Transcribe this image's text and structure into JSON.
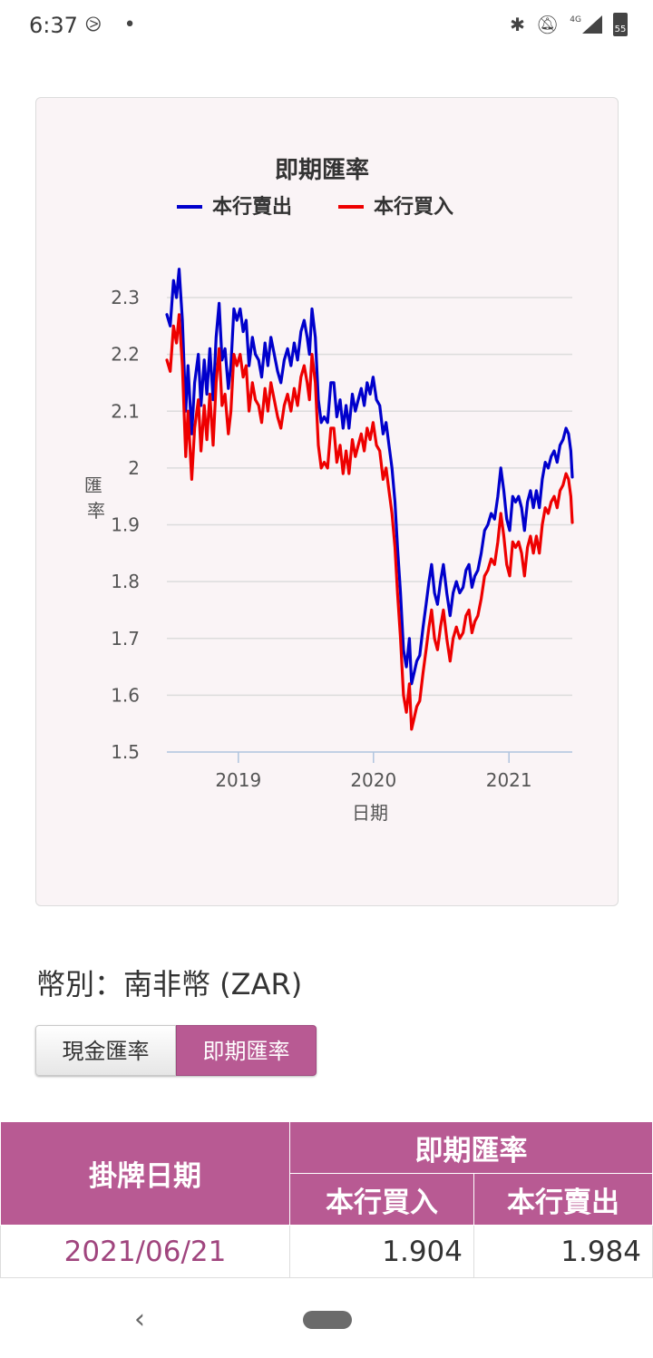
{
  "status_bar": {
    "time": "6:37",
    "left_icons": [
      "notification-swirl-icon",
      "dot-icon"
    ],
    "network_label": "4G",
    "battery_level": "55",
    "right_icons": [
      "bluetooth-icon",
      "mute-icon",
      "signal-icon",
      "battery-icon"
    ]
  },
  "chart_data": {
    "type": "line",
    "title": "即期匯率",
    "xlabel": "日期",
    "ylabel": "匯率",
    "ylim": [
      1.5,
      2.3
    ],
    "yticks": [
      "1.5",
      "1.6",
      "1.7",
      "1.8",
      "1.9",
      "2",
      "2.1",
      "2.2",
      "2.3"
    ],
    "xticks": [
      "2019",
      "2020",
      "2021"
    ],
    "xlim": [
      "2018-06-22",
      "2021-06-21"
    ],
    "grid": true,
    "legend_position": "top",
    "series": [
      {
        "name": "本行賣出",
        "color": "#0000cc",
        "points": [
          [
            "2018-06-22",
            2.27
          ],
          [
            "2018-07-01",
            2.25
          ],
          [
            "2018-07-10",
            2.33
          ],
          [
            "2018-07-18",
            2.3
          ],
          [
            "2018-07-25",
            2.35
          ],
          [
            "2018-08-03",
            2.26
          ],
          [
            "2018-08-12",
            2.1
          ],
          [
            "2018-08-18",
            2.18
          ],
          [
            "2018-08-28",
            2.06
          ],
          [
            "2018-09-05",
            2.15
          ],
          [
            "2018-09-15",
            2.2
          ],
          [
            "2018-09-22",
            2.11
          ],
          [
            "2018-10-01",
            2.19
          ],
          [
            "2018-10-08",
            2.13
          ],
          [
            "2018-10-16",
            2.21
          ],
          [
            "2018-10-25",
            2.12
          ],
          [
            "2018-11-02",
            2.23
          ],
          [
            "2018-11-10",
            2.29
          ],
          [
            "2018-11-18",
            2.19
          ],
          [
            "2018-11-26",
            2.21
          ],
          [
            "2018-12-05",
            2.14
          ],
          [
            "2018-12-12",
            2.18
          ],
          [
            "2018-12-20",
            2.28
          ],
          [
            "2018-12-28",
            2.26
          ],
          [
            "2019-01-06",
            2.28
          ],
          [
            "2019-01-14",
            2.24
          ],
          [
            "2019-01-22",
            2.26
          ],
          [
            "2019-01-30",
            2.18
          ],
          [
            "2019-02-08",
            2.23
          ],
          [
            "2019-02-16",
            2.2
          ],
          [
            "2019-02-25",
            2.19
          ],
          [
            "2019-03-05",
            2.16
          ],
          [
            "2019-03-14",
            2.22
          ],
          [
            "2019-03-22",
            2.18
          ],
          [
            "2019-03-30",
            2.23
          ],
          [
            "2019-04-08",
            2.2
          ],
          [
            "2019-04-17",
            2.17
          ],
          [
            "2019-04-26",
            2.15
          ],
          [
            "2019-05-05",
            2.19
          ],
          [
            "2019-05-14",
            2.21
          ],
          [
            "2019-05-23",
            2.18
          ],
          [
            "2019-06-01",
            2.22
          ],
          [
            "2019-06-10",
            2.19
          ],
          [
            "2019-06-19",
            2.24
          ],
          [
            "2019-06-28",
            2.26
          ],
          [
            "2019-07-06",
            2.23
          ],
          [
            "2019-07-12",
            2.2
          ],
          [
            "2019-07-19",
            2.28
          ],
          [
            "2019-07-28",
            2.23
          ],
          [
            "2019-08-05",
            2.12
          ],
          [
            "2019-08-13",
            2.08
          ],
          [
            "2019-08-21",
            2.09
          ],
          [
            "2019-08-30",
            2.08
          ],
          [
            "2019-09-08",
            2.15
          ],
          [
            "2019-09-16",
            2.15
          ],
          [
            "2019-09-24",
            2.09
          ],
          [
            "2019-10-03",
            2.12
          ],
          [
            "2019-10-11",
            2.07
          ],
          [
            "2019-10-19",
            2.11
          ],
          [
            "2019-10-27",
            2.07
          ],
          [
            "2019-11-05",
            2.13
          ],
          [
            "2019-11-13",
            2.1
          ],
          [
            "2019-11-21",
            2.12
          ],
          [
            "2019-11-29",
            2.14
          ],
          [
            "2019-12-07",
            2.11
          ],
          [
            "2019-12-15",
            2.15
          ],
          [
            "2019-12-23",
            2.13
          ],
          [
            "2019-12-31",
            2.16
          ],
          [
            "2020-01-09",
            2.12
          ],
          [
            "2020-01-18",
            2.11
          ],
          [
            "2020-01-27",
            2.06
          ],
          [
            "2020-02-04",
            2.08
          ],
          [
            "2020-02-12",
            2.04
          ],
          [
            "2020-02-20",
            2.0
          ],
          [
            "2020-02-28",
            1.94
          ],
          [
            "2020-03-06",
            1.86
          ],
          [
            "2020-03-14",
            1.78
          ],
          [
            "2020-03-22",
            1.68
          ],
          [
            "2020-03-30",
            1.65
          ],
          [
            "2020-04-07",
            1.7
          ],
          [
            "2020-04-13",
            1.62
          ],
          [
            "2020-04-20",
            1.64
          ],
          [
            "2020-04-27",
            1.66
          ],
          [
            "2020-05-05",
            1.67
          ],
          [
            "2020-05-14",
            1.72
          ],
          [
            "2020-05-22",
            1.76
          ],
          [
            "2020-05-30",
            1.8
          ],
          [
            "2020-06-06",
            1.83
          ],
          [
            "2020-06-14",
            1.78
          ],
          [
            "2020-06-22",
            1.76
          ],
          [
            "2020-06-30",
            1.8
          ],
          [
            "2020-07-08",
            1.83
          ],
          [
            "2020-07-17",
            1.78
          ],
          [
            "2020-07-26",
            1.74
          ],
          [
            "2020-08-03",
            1.78
          ],
          [
            "2020-08-12",
            1.8
          ],
          [
            "2020-08-21",
            1.78
          ],
          [
            "2020-08-30",
            1.79
          ],
          [
            "2020-09-07",
            1.82
          ],
          [
            "2020-09-15",
            1.83
          ],
          [
            "2020-09-23",
            1.79
          ],
          [
            "2020-10-01",
            1.81
          ],
          [
            "2020-10-09",
            1.82
          ],
          [
            "2020-10-18",
            1.85
          ],
          [
            "2020-10-27",
            1.89
          ],
          [
            "2020-11-05",
            1.9
          ],
          [
            "2020-11-14",
            1.92
          ],
          [
            "2020-11-23",
            1.91
          ],
          [
            "2020-12-02",
            1.95
          ],
          [
            "2020-12-10",
            2.0
          ],
          [
            "2020-12-18",
            1.96
          ],
          [
            "2020-12-26",
            1.91
          ],
          [
            "2021-01-03",
            1.89
          ],
          [
            "2021-01-11",
            1.95
          ],
          [
            "2021-01-19",
            1.94
          ],
          [
            "2021-01-27",
            1.95
          ],
          [
            "2021-02-04",
            1.93
          ],
          [
            "2021-02-12",
            1.89
          ],
          [
            "2021-02-20",
            1.94
          ],
          [
            "2021-02-28",
            1.96
          ],
          [
            "2021-03-08",
            1.93
          ],
          [
            "2021-03-16",
            1.96
          ],
          [
            "2021-03-24",
            1.93
          ],
          [
            "2021-04-01",
            1.98
          ],
          [
            "2021-04-09",
            2.01
          ],
          [
            "2021-04-17",
            2.0
          ],
          [
            "2021-04-25",
            2.02
          ],
          [
            "2021-05-03",
            2.03
          ],
          [
            "2021-05-11",
            2.01
          ],
          [
            "2021-05-19",
            2.04
          ],
          [
            "2021-05-27",
            2.05
          ],
          [
            "2021-06-04",
            2.07
          ],
          [
            "2021-06-11",
            2.06
          ],
          [
            "2021-06-17",
            2.03
          ],
          [
            "2021-06-21",
            1.984
          ]
        ]
      },
      {
        "name": "本行買入",
        "color": "#ee0000",
        "points": [
          [
            "2018-06-22",
            2.19
          ],
          [
            "2018-07-01",
            2.17
          ],
          [
            "2018-07-10",
            2.25
          ],
          [
            "2018-07-18",
            2.22
          ],
          [
            "2018-07-25",
            2.27
          ],
          [
            "2018-08-03",
            2.18
          ],
          [
            "2018-08-12",
            2.02
          ],
          [
            "2018-08-18",
            2.1
          ],
          [
            "2018-08-28",
            1.98
          ],
          [
            "2018-09-05",
            2.07
          ],
          [
            "2018-09-15",
            2.12
          ],
          [
            "2018-09-22",
            2.03
          ],
          [
            "2018-10-01",
            2.11
          ],
          [
            "2018-10-08",
            2.05
          ],
          [
            "2018-10-16",
            2.13
          ],
          [
            "2018-10-25",
            2.04
          ],
          [
            "2018-11-02",
            2.15
          ],
          [
            "2018-11-10",
            2.21
          ],
          [
            "2018-11-18",
            2.11
          ],
          [
            "2018-11-26",
            2.13
          ],
          [
            "2018-12-05",
            2.06
          ],
          [
            "2018-12-12",
            2.1
          ],
          [
            "2018-12-20",
            2.2
          ],
          [
            "2018-12-28",
            2.18
          ],
          [
            "2019-01-06",
            2.2
          ],
          [
            "2019-01-14",
            2.16
          ],
          [
            "2019-01-22",
            2.18
          ],
          [
            "2019-01-30",
            2.1
          ],
          [
            "2019-02-08",
            2.15
          ],
          [
            "2019-02-16",
            2.12
          ],
          [
            "2019-02-25",
            2.11
          ],
          [
            "2019-03-05",
            2.08
          ],
          [
            "2019-03-14",
            2.14
          ],
          [
            "2019-03-22",
            2.1
          ],
          [
            "2019-03-30",
            2.15
          ],
          [
            "2019-04-08",
            2.12
          ],
          [
            "2019-04-17",
            2.09
          ],
          [
            "2019-04-26",
            2.07
          ],
          [
            "2019-05-05",
            2.11
          ],
          [
            "2019-05-14",
            2.13
          ],
          [
            "2019-05-23",
            2.1
          ],
          [
            "2019-06-01",
            2.14
          ],
          [
            "2019-06-10",
            2.11
          ],
          [
            "2019-06-19",
            2.16
          ],
          [
            "2019-06-28",
            2.18
          ],
          [
            "2019-07-06",
            2.15
          ],
          [
            "2019-07-12",
            2.12
          ],
          [
            "2019-07-19",
            2.2
          ],
          [
            "2019-07-28",
            2.15
          ],
          [
            "2019-08-05",
            2.04
          ],
          [
            "2019-08-13",
            2.0
          ],
          [
            "2019-08-21",
            2.01
          ],
          [
            "2019-08-30",
            2.0
          ],
          [
            "2019-09-08",
            2.07
          ],
          [
            "2019-09-16",
            2.07
          ],
          [
            "2019-09-24",
            2.01
          ],
          [
            "2019-10-03",
            2.04
          ],
          [
            "2019-10-11",
            1.99
          ],
          [
            "2019-10-19",
            2.03
          ],
          [
            "2019-10-27",
            1.99
          ],
          [
            "2019-11-05",
            2.05
          ],
          [
            "2019-11-13",
            2.02
          ],
          [
            "2019-11-21",
            2.04
          ],
          [
            "2019-11-29",
            2.06
          ],
          [
            "2019-12-07",
            2.03
          ],
          [
            "2019-12-15",
            2.07
          ],
          [
            "2019-12-23",
            2.05
          ],
          [
            "2019-12-31",
            2.08
          ],
          [
            "2020-01-09",
            2.04
          ],
          [
            "2020-01-18",
            2.03
          ],
          [
            "2020-01-27",
            1.98
          ],
          [
            "2020-02-04",
            2.0
          ],
          [
            "2020-02-12",
            1.96
          ],
          [
            "2020-02-20",
            1.92
          ],
          [
            "2020-02-28",
            1.86
          ],
          [
            "2020-03-06",
            1.78
          ],
          [
            "2020-03-14",
            1.7
          ],
          [
            "2020-03-22",
            1.6
          ],
          [
            "2020-03-30",
            1.57
          ],
          [
            "2020-04-07",
            1.62
          ],
          [
            "2020-04-13",
            1.54
          ],
          [
            "2020-04-20",
            1.56
          ],
          [
            "2020-04-27",
            1.58
          ],
          [
            "2020-05-05",
            1.59
          ],
          [
            "2020-05-14",
            1.64
          ],
          [
            "2020-05-22",
            1.68
          ],
          [
            "2020-05-30",
            1.72
          ],
          [
            "2020-06-06",
            1.75
          ],
          [
            "2020-06-14",
            1.7
          ],
          [
            "2020-06-22",
            1.68
          ],
          [
            "2020-06-30",
            1.72
          ],
          [
            "2020-07-08",
            1.75
          ],
          [
            "2020-07-17",
            1.7
          ],
          [
            "2020-07-26",
            1.66
          ],
          [
            "2020-08-03",
            1.7
          ],
          [
            "2020-08-12",
            1.72
          ],
          [
            "2020-08-21",
            1.7
          ],
          [
            "2020-08-30",
            1.71
          ],
          [
            "2020-09-07",
            1.74
          ],
          [
            "2020-09-15",
            1.75
          ],
          [
            "2020-09-23",
            1.71
          ],
          [
            "2020-10-01",
            1.73
          ],
          [
            "2020-10-09",
            1.74
          ],
          [
            "2020-10-18",
            1.77
          ],
          [
            "2020-10-27",
            1.81
          ],
          [
            "2020-11-05",
            1.82
          ],
          [
            "2020-11-14",
            1.84
          ],
          [
            "2020-11-23",
            1.83
          ],
          [
            "2020-12-02",
            1.87
          ],
          [
            "2020-12-10",
            1.92
          ],
          [
            "2020-12-18",
            1.88
          ],
          [
            "2020-12-26",
            1.83
          ],
          [
            "2021-01-03",
            1.81
          ],
          [
            "2021-01-11",
            1.87
          ],
          [
            "2021-01-19",
            1.86
          ],
          [
            "2021-01-27",
            1.87
          ],
          [
            "2021-02-04",
            1.85
          ],
          [
            "2021-02-12",
            1.81
          ],
          [
            "2021-02-20",
            1.86
          ],
          [
            "2021-02-28",
            1.88
          ],
          [
            "2021-03-08",
            1.85
          ],
          [
            "2021-03-16",
            1.88
          ],
          [
            "2021-03-24",
            1.85
          ],
          [
            "2021-04-01",
            1.9
          ],
          [
            "2021-04-09",
            1.93
          ],
          [
            "2021-04-17",
            1.92
          ],
          [
            "2021-04-25",
            1.94
          ],
          [
            "2021-05-03",
            1.95
          ],
          [
            "2021-05-11",
            1.93
          ],
          [
            "2021-05-19",
            1.96
          ],
          [
            "2021-05-27",
            1.97
          ],
          [
            "2021-06-04",
            1.99
          ],
          [
            "2021-06-11",
            1.98
          ],
          [
            "2021-06-17",
            1.95
          ],
          [
            "2021-06-21",
            1.904
          ]
        ]
      }
    ]
  },
  "currency": {
    "label": "幣別：南非幣 (ZAR)"
  },
  "tabs": [
    {
      "label": "現金匯率",
      "active": false
    },
    {
      "label": "即期匯率",
      "active": true
    }
  ],
  "table": {
    "date_header": "掛牌日期",
    "group_header": "即期匯率",
    "buy_header": "本行買入",
    "sell_header": "本行賣出",
    "rows": [
      {
        "date": "2021/06/21",
        "buy": "1.904",
        "sell": "1.984"
      }
    ],
    "date_color": "#a0457e",
    "header_color": "#b85a93"
  },
  "nav": {
    "icons": [
      "back-icon",
      "home-pill-icon"
    ]
  }
}
